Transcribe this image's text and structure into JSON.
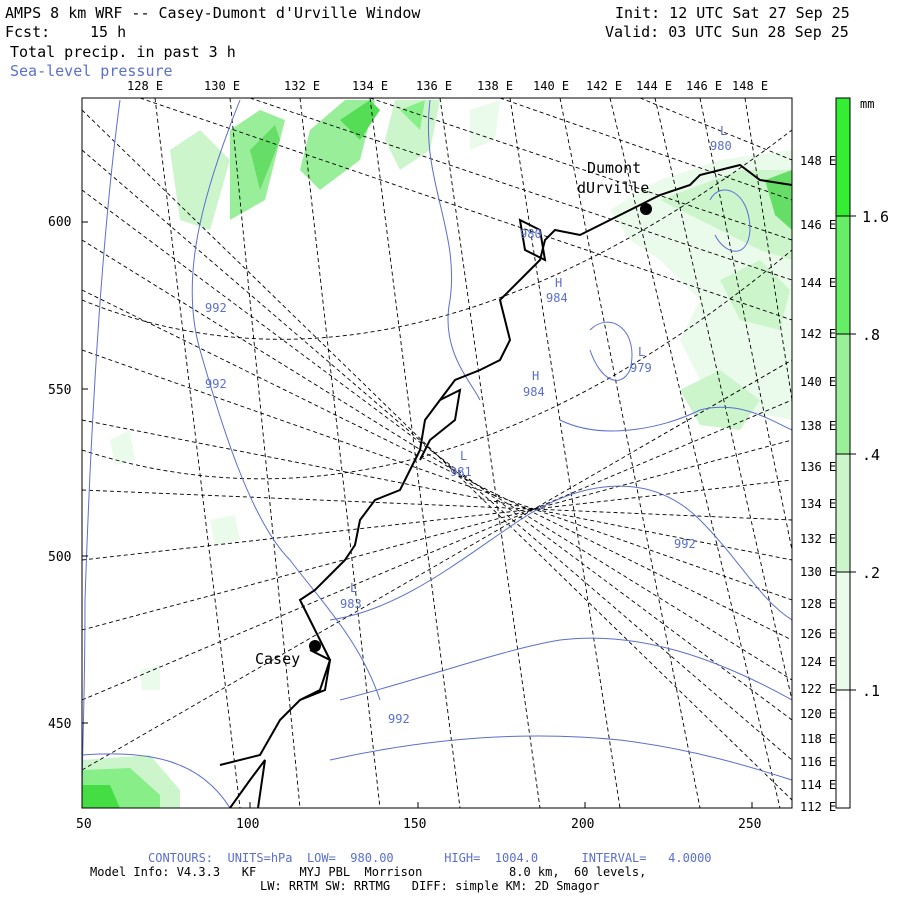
{
  "header": {
    "title": "AMPS 8 km WRF -- Casey-Dumont d'Urville Window",
    "fcst_label": "Fcst:",
    "fcst_value": "15 h",
    "field_label": "Total precip. in past 3 h",
    "overlay_label": "Sea-level pressure",
    "init": "Init: 12 UTC Sat 27 Sep 25",
    "valid": "Valid: 03 UTC Sun 28 Sep 25"
  },
  "top_longitudes": [
    "128 E",
    "130 E",
    "132 E",
    "134 E",
    "136 E",
    "138 E",
    "140 E",
    "142 E",
    "144 E",
    "146 E",
    "148 E"
  ],
  "right_longitudes": [
    "148 E",
    "146 E",
    "144 E",
    "142 E",
    "140 E",
    "138 E",
    "136 E",
    "134 E",
    "132 E",
    "130 E",
    "128 E",
    "126 E",
    "124 E",
    "122 E",
    "120 E",
    "118 E",
    "116 E",
    "114 E",
    "112 E"
  ],
  "y_ticks": [
    "600",
    "550",
    "500",
    "450"
  ],
  "x_ticks": [
    "50",
    "100",
    "150",
    "200",
    "250"
  ],
  "stations": [
    {
      "name": "Casey"
    },
    {
      "name_line1": "Dumont",
      "name_line2": "dUrville"
    }
  ],
  "pressure_labels": [
    {
      "text": "980",
      "kind": "L"
    },
    {
      "text": "980",
      "kind": ""
    },
    {
      "text": "984",
      "kind": "H"
    },
    {
      "text": "984",
      "kind": "H"
    },
    {
      "text": "979",
      "kind": "L"
    },
    {
      "text": "981",
      "kind": "L"
    },
    {
      "text": "983",
      "kind": "L"
    },
    {
      "text": "992",
      "kind": ""
    },
    {
      "text": "992",
      "kind": ""
    },
    {
      "text": "992",
      "kind": ""
    },
    {
      "text": "992",
      "kind": ""
    }
  ],
  "colorbar": {
    "unit": "mm",
    "labels": [
      "1.6",
      ".8",
      ".4",
      ".2",
      ".1"
    ],
    "colors": [
      "#33ee33",
      "#66ee66",
      "#99f099",
      "#ccf5cc",
      "#ebfbeb",
      "#ffffff"
    ]
  },
  "footer": {
    "contours": "CONTOURS:  UNITS=hPa  LOW=  980.00       HIGH=  1004.0      INTERVAL=   4.0000",
    "model_info": "Model Info: V4.3.3   KF      MYJ PBL  Morrison            8.0 km,  60 levels,",
    "physics": "LW: RRTM SW: RRTMG   DIFF: simple KM: 2D Smagor"
  },
  "colors": {
    "contour": "#5a6fd0",
    "precip_light": "#ccf5cc",
    "precip_mid": "#88ee88",
    "precip_heavy": "#33dd33"
  }
}
